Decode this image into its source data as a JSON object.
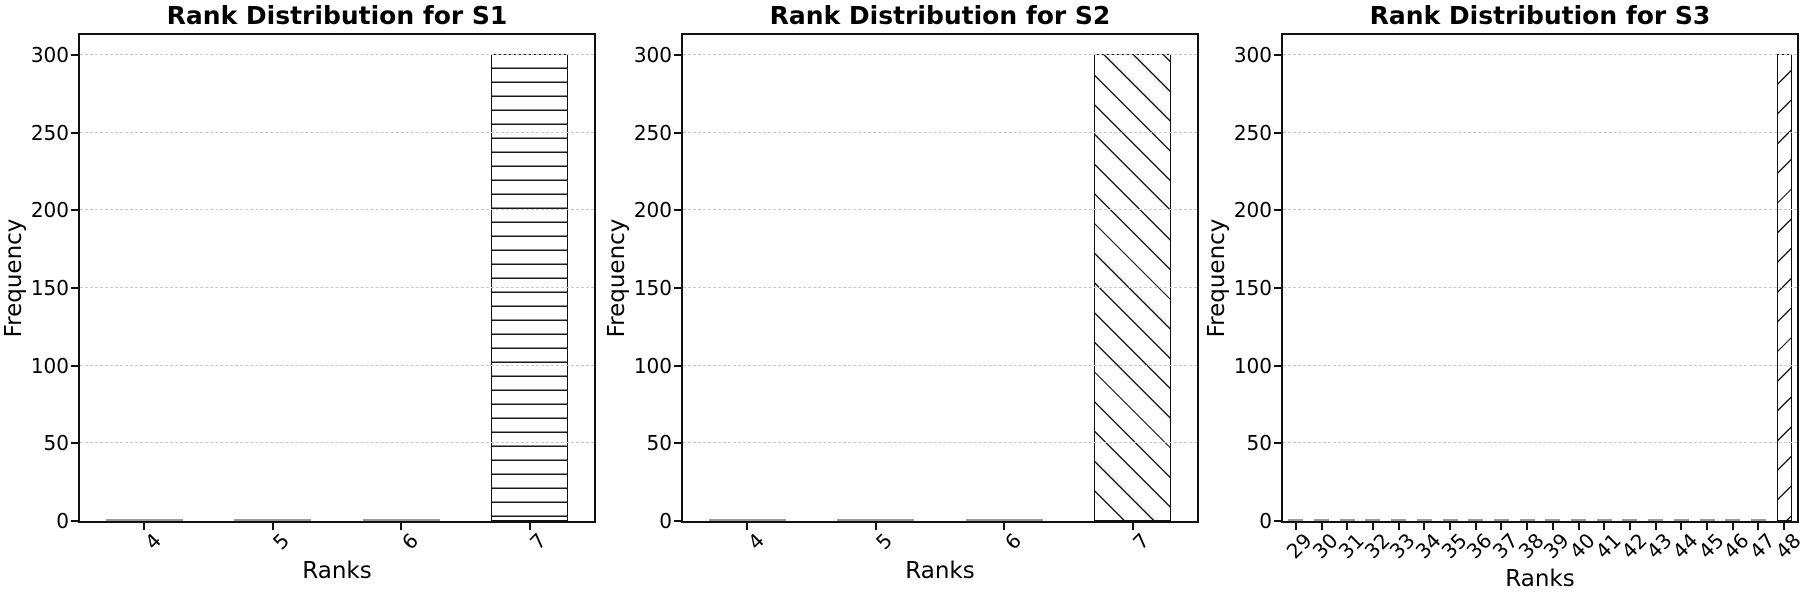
{
  "figure": {
    "background": "#ffffff",
    "text_color": "#000000",
    "grid_color": "#c8c8c8",
    "grid_style": "dashed",
    "bar_fill": "#ffffff",
    "bar_edge": "#111111",
    "zero_bar_color": "#9a9a9a",
    "tick_label_rotation_deg": 45
  },
  "chart_data": [
    {
      "type": "bar",
      "title": "Rank Distribution for S1",
      "xlabel": "Ranks",
      "ylabel": "Frequency",
      "categories": [
        "4",
        "5",
        "6",
        "7"
      ],
      "values": [
        0,
        0,
        0,
        300
      ],
      "yticks": [
        0,
        50,
        100,
        150,
        200,
        250,
        300
      ],
      "ylim": [
        0,
        315
      ],
      "bar_width_fraction": 0.6,
      "hatch": "-",
      "hatch_name": "horizontal-lines",
      "grid": "horizontal-dashed",
      "legend": "none"
    },
    {
      "type": "bar",
      "title": "Rank Distribution for S2",
      "xlabel": "Ranks",
      "ylabel": "Frequency",
      "categories": [
        "4",
        "5",
        "6",
        "7"
      ],
      "values": [
        0,
        0,
        0,
        300
      ],
      "yticks": [
        0,
        50,
        100,
        150,
        200,
        250,
        300
      ],
      "ylim": [
        0,
        315
      ],
      "bar_width_fraction": 0.6,
      "hatch": "\\",
      "hatch_name": "backslash-diagonal",
      "grid": "horizontal-dashed",
      "legend": "none"
    },
    {
      "type": "bar",
      "title": "Rank Distribution for S3",
      "xlabel": "Ranks",
      "ylabel": "Frequency",
      "categories": [
        "29",
        "30",
        "31",
        "32",
        "33",
        "34",
        "35",
        "36",
        "37",
        "38",
        "39",
        "40",
        "41",
        "42",
        "43",
        "44",
        "45",
        "46",
        "47",
        "48"
      ],
      "values": [
        0,
        0,
        0,
        0,
        0,
        0,
        0,
        0,
        0,
        0,
        0,
        0,
        0,
        0,
        0,
        0,
        0,
        0,
        0,
        300
      ],
      "yticks": [
        0,
        50,
        100,
        150,
        200,
        250,
        300
      ],
      "ylim": [
        0,
        315
      ],
      "bar_width_fraction": 0.6,
      "hatch": "/",
      "hatch_name": "forward-diagonal",
      "grid": "horizontal-dashed",
      "legend": "none"
    }
  ]
}
